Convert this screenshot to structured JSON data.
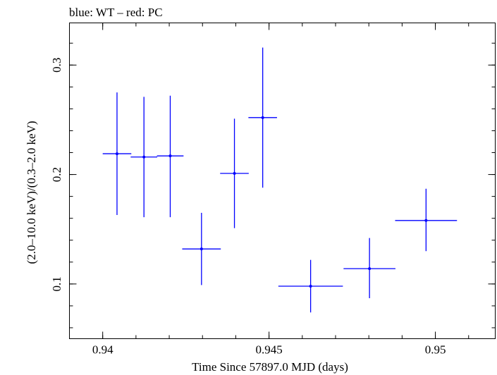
{
  "chart_data": {
    "type": "scatter",
    "title": "blue: WT – red: PC",
    "xlabel": "Time Since 57897.0 MJD (days)",
    "ylabel": "(2.0–10.0 keV)/(0.3–2.0 keV)",
    "xlim": [
      0.939,
      0.9518
    ],
    "ylim": [
      0.05,
      0.3385
    ],
    "x_ticks": [
      {
        "value": 0.94,
        "label": "0.94"
      },
      {
        "value": 0.945,
        "label": "0.945"
      },
      {
        "value": 0.95,
        "label": "0.95"
      }
    ],
    "y_ticks": [
      {
        "value": 0.1,
        "label": "0.1"
      },
      {
        "value": 0.2,
        "label": "0.2"
      },
      {
        "value": 0.3,
        "label": "0.3"
      }
    ],
    "x_minor_step": 0.001,
    "y_minor_step": 0.02,
    "grid": false,
    "series": [
      {
        "color": "#0000ff",
        "points": [
          {
            "x": 0.94043,
            "y": 0.219,
            "xerr_lo": 0.00043,
            "xerr_hi": 0.00043,
            "y_lo": 0.163,
            "y_hi": 0.275
          },
          {
            "x": 0.94124,
            "y": 0.216,
            "xerr_lo": 0.0004,
            "xerr_hi": 0.0004,
            "y_lo": 0.161,
            "y_hi": 0.271
          },
          {
            "x": 0.94203,
            "y": 0.217,
            "xerr_lo": 0.0004,
            "xerr_hi": 0.0004,
            "y_lo": 0.161,
            "y_hi": 0.272
          },
          {
            "x": 0.94297,
            "y": 0.132,
            "xerr_lo": 0.00058,
            "xerr_hi": 0.00058,
            "y_lo": 0.099,
            "y_hi": 0.165
          },
          {
            "x": 0.94396,
            "y": 0.201,
            "xerr_lo": 0.00043,
            "xerr_hi": 0.00043,
            "y_lo": 0.151,
            "y_hi": 0.251
          },
          {
            "x": 0.94481,
            "y": 0.252,
            "xerr_lo": 0.00043,
            "xerr_hi": 0.00043,
            "y_lo": 0.188,
            "y_hi": 0.316
          },
          {
            "x": 0.94625,
            "y": 0.098,
            "xerr_lo": 0.00097,
            "xerr_hi": 0.00097,
            "y_lo": 0.074,
            "y_hi": 0.122
          },
          {
            "x": 0.94802,
            "y": 0.114,
            "xerr_lo": 0.00078,
            "xerr_hi": 0.00078,
            "y_lo": 0.087,
            "y_hi": 0.142
          },
          {
            "x": 0.94972,
            "y": 0.158,
            "xerr_lo": 0.00093,
            "xerr_hi": 0.00093,
            "y_lo": 0.13,
            "y_hi": 0.187
          }
        ]
      }
    ]
  }
}
